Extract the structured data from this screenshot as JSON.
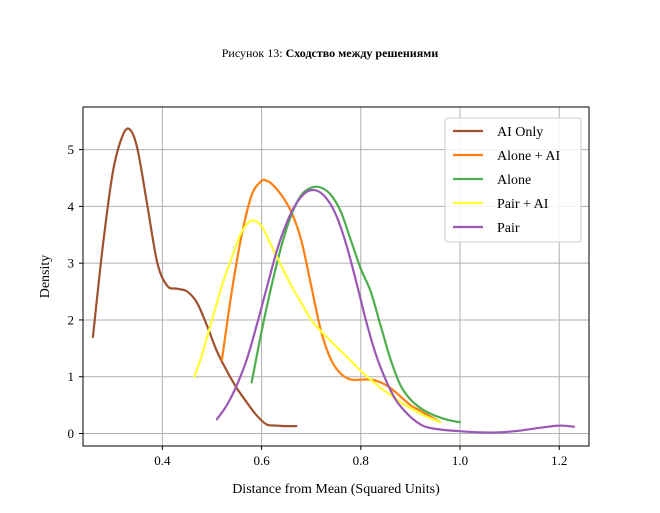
{
  "figure": {
    "caption_prefix": "Рисунок 13:",
    "caption_title": "Сходство между решениями"
  },
  "chart_data": {
    "type": "line",
    "title": "",
    "xlabel": "Distance from Mean (Squared Units)",
    "ylabel": "Density",
    "xlim": [
      0.24,
      1.26
    ],
    "ylim": [
      -0.22,
      5.75
    ],
    "xticks": [
      0.4,
      0.6,
      0.8,
      1.0,
      1.2
    ],
    "xtick_labels": [
      "0.4",
      "0.6",
      "0.8",
      "1.0",
      "1.2"
    ],
    "yticks": [
      0,
      1,
      2,
      3,
      4,
      5
    ],
    "ytick_labels": [
      "0",
      "1",
      "2",
      "3",
      "4",
      "5"
    ],
    "grid": true,
    "legend_position": "top-right",
    "series": [
      {
        "name": "AI Only",
        "color": "#a0522d",
        "x": [
          0.26,
          0.28,
          0.3,
          0.32,
          0.335,
          0.35,
          0.37,
          0.39,
          0.41,
          0.43,
          0.45,
          0.47,
          0.49,
          0.51,
          0.53,
          0.55,
          0.57,
          0.59,
          0.61,
          0.63,
          0.65,
          0.67
        ],
        "y": [
          1.7,
          3.3,
          4.6,
          5.25,
          5.35,
          5.0,
          4.0,
          3.0,
          2.6,
          2.55,
          2.5,
          2.3,
          1.9,
          1.45,
          1.1,
          0.8,
          0.55,
          0.32,
          0.16,
          0.14,
          0.13,
          0.13
        ]
      },
      {
        "name": "Alone + AI",
        "color": "#ff7f0e",
        "x": [
          0.52,
          0.54,
          0.56,
          0.58,
          0.6,
          0.61,
          0.62,
          0.64,
          0.66,
          0.68,
          0.7,
          0.72,
          0.74,
          0.76,
          0.78,
          0.8,
          0.82,
          0.84,
          0.86,
          0.88,
          0.9,
          0.92,
          0.94,
          0.96
        ],
        "y": [
          1.3,
          2.5,
          3.5,
          4.2,
          4.45,
          4.45,
          4.4,
          4.2,
          3.9,
          3.4,
          2.6,
          1.8,
          1.3,
          1.05,
          0.95,
          0.95,
          0.95,
          0.9,
          0.8,
          0.65,
          0.5,
          0.4,
          0.3,
          0.2
        ]
      },
      {
        "name": "Alone",
        "color": "#4cae4c",
        "x": [
          0.58,
          0.6,
          0.62,
          0.64,
          0.66,
          0.68,
          0.7,
          0.72,
          0.74,
          0.76,
          0.78,
          0.8,
          0.82,
          0.84,
          0.86,
          0.88,
          0.9,
          0.92,
          0.94,
          0.96,
          0.98,
          1.0
        ],
        "y": [
          0.9,
          1.8,
          2.6,
          3.3,
          3.85,
          4.2,
          4.33,
          4.33,
          4.2,
          3.9,
          3.4,
          2.9,
          2.5,
          1.9,
          1.3,
          0.85,
          0.6,
          0.45,
          0.35,
          0.28,
          0.23,
          0.2
        ]
      },
      {
        "name": "Pair + AI",
        "color": "#ffff33",
        "x": [
          0.465,
          0.48,
          0.5,
          0.52,
          0.54,
          0.56,
          0.58,
          0.6,
          0.62,
          0.64,
          0.66,
          0.68,
          0.7,
          0.72,
          0.74,
          0.76,
          0.78,
          0.8,
          0.82,
          0.84,
          0.86,
          0.88,
          0.9,
          0.92,
          0.94,
          0.96
        ],
        "y": [
          1.0,
          1.4,
          2.0,
          2.6,
          3.1,
          3.55,
          3.75,
          3.65,
          3.3,
          2.95,
          2.6,
          2.3,
          2.0,
          1.8,
          1.62,
          1.45,
          1.28,
          1.1,
          0.95,
          0.8,
          0.68,
          0.55,
          0.45,
          0.35,
          0.27,
          0.2
        ]
      },
      {
        "name": "Pair",
        "color": "#9b59b6",
        "x": [
          0.51,
          0.53,
          0.55,
          0.57,
          0.59,
          0.61,
          0.63,
          0.65,
          0.67,
          0.69,
          0.71,
          0.73,
          0.75,
          0.77,
          0.79,
          0.81,
          0.83,
          0.85,
          0.87,
          0.89,
          0.91,
          0.93,
          0.96,
          1.0,
          1.04,
          1.08,
          1.12,
          1.16,
          1.2,
          1.23
        ],
        "y": [
          0.25,
          0.5,
          0.85,
          1.3,
          1.9,
          2.55,
          3.2,
          3.7,
          4.05,
          4.25,
          4.28,
          4.15,
          3.85,
          3.35,
          2.7,
          2.0,
          1.4,
          0.95,
          0.6,
          0.38,
          0.22,
          0.12,
          0.07,
          0.04,
          0.02,
          0.02,
          0.05,
          0.1,
          0.14,
          0.12
        ]
      }
    ]
  }
}
